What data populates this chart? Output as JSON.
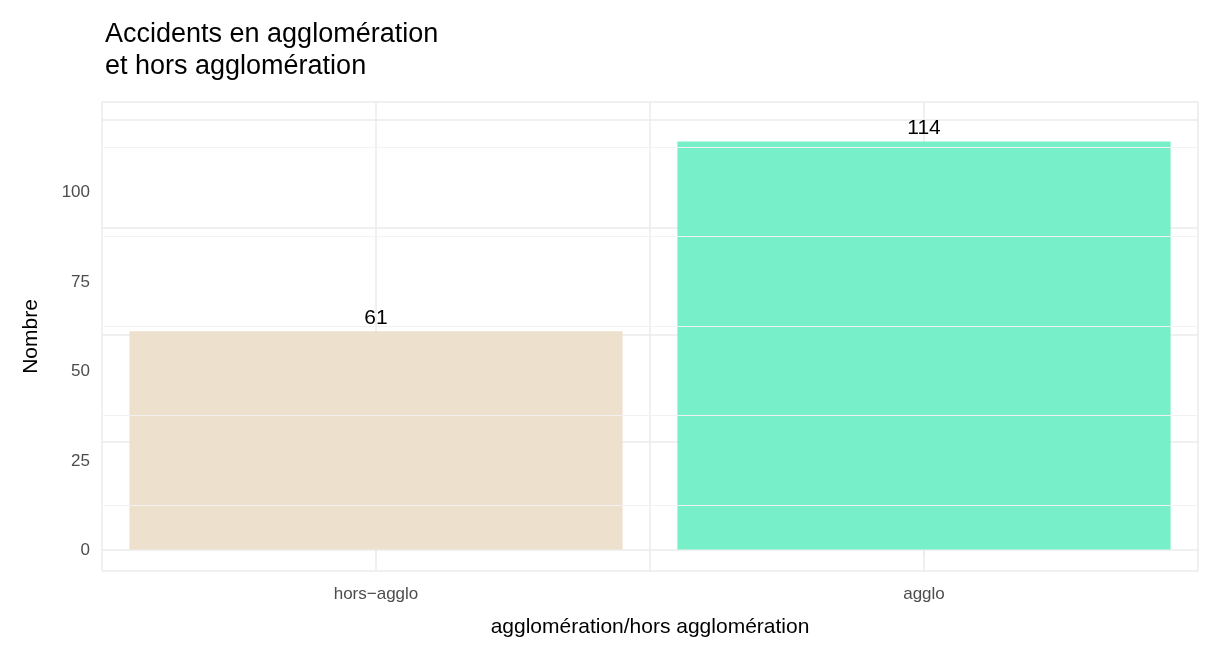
{
  "chart_data": {
    "type": "bar",
    "title": "Accidents en agglomération\net hors agglomération",
    "xlabel": "agglomération/hors agglomération",
    "ylabel": "Nombre",
    "categories": [
      "hors−agglo",
      "agglo"
    ],
    "values": [
      61,
      114
    ],
    "colors": [
      "#ede0cc",
      "#77efc8"
    ],
    "ylim": [
      -6,
      125
    ],
    "yticks": [
      0,
      25,
      50,
      75,
      100
    ],
    "grid": true,
    "data_labels": true
  }
}
